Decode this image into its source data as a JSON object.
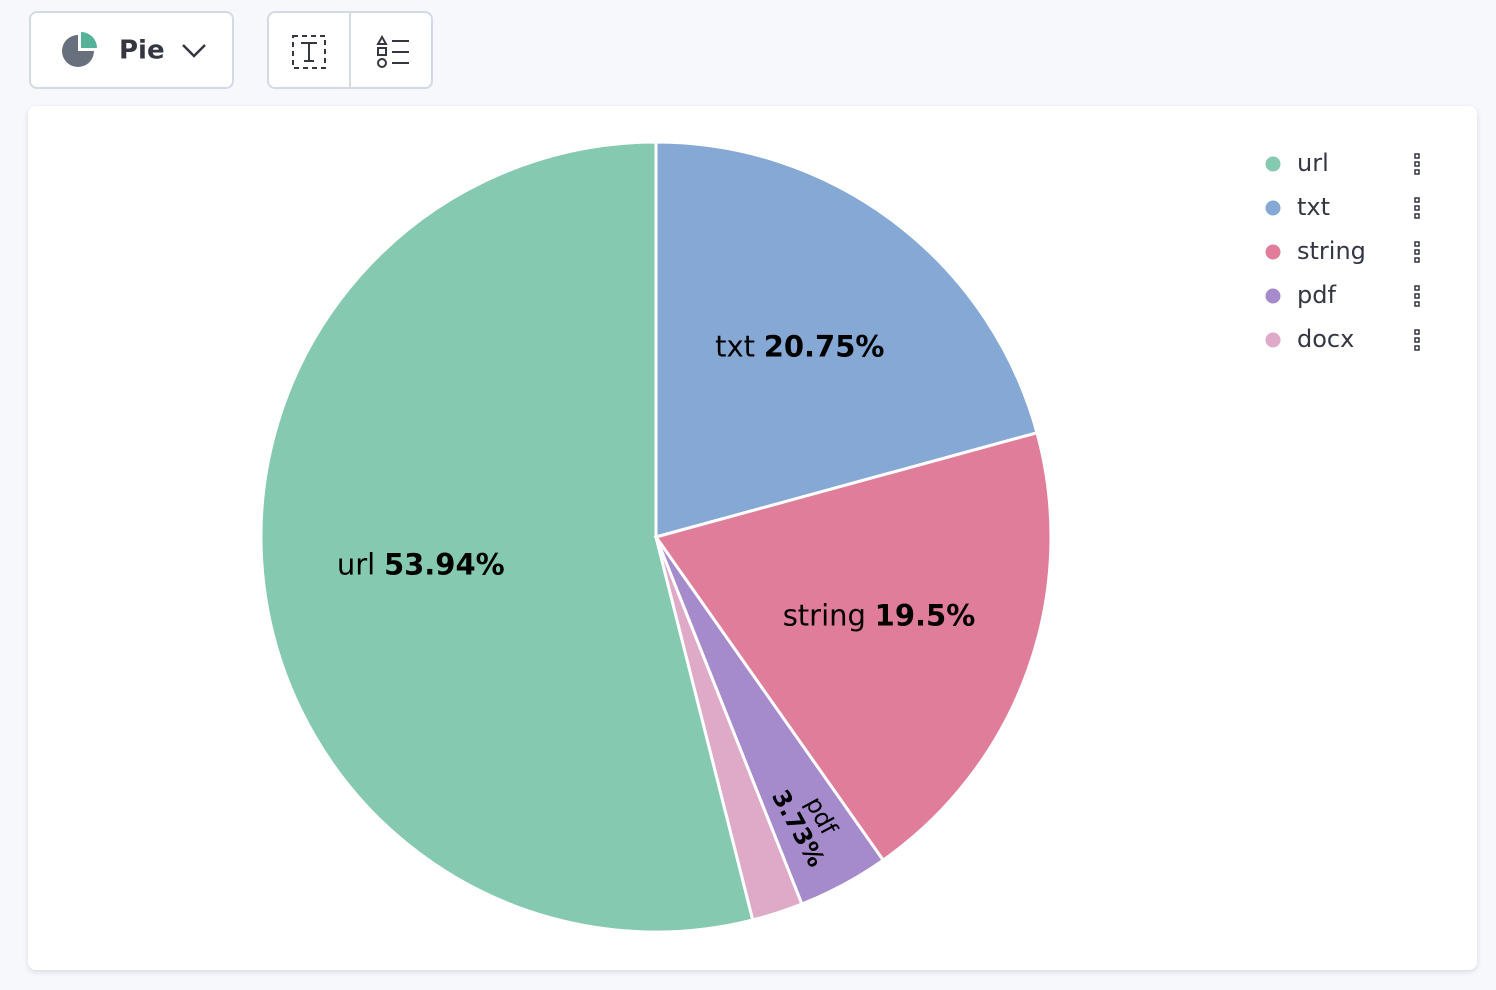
{
  "toolbar": {
    "chart_type": "Pie"
  },
  "chart_data": {
    "type": "pie",
    "categories": [
      "url",
      "txt",
      "string",
      "pdf",
      "docx"
    ],
    "values": [
      53.94,
      20.75,
      19.5,
      3.73,
      2.08
    ],
    "value_labels": [
      "53.94%",
      "20.75%",
      "19.5%",
      "3.73%",
      null
    ],
    "colors": [
      "#85c9b1",
      "#85a8d4",
      "#e07d9a",
      "#a58bcb",
      "#dfaac8"
    ],
    "legend": "top-right"
  }
}
